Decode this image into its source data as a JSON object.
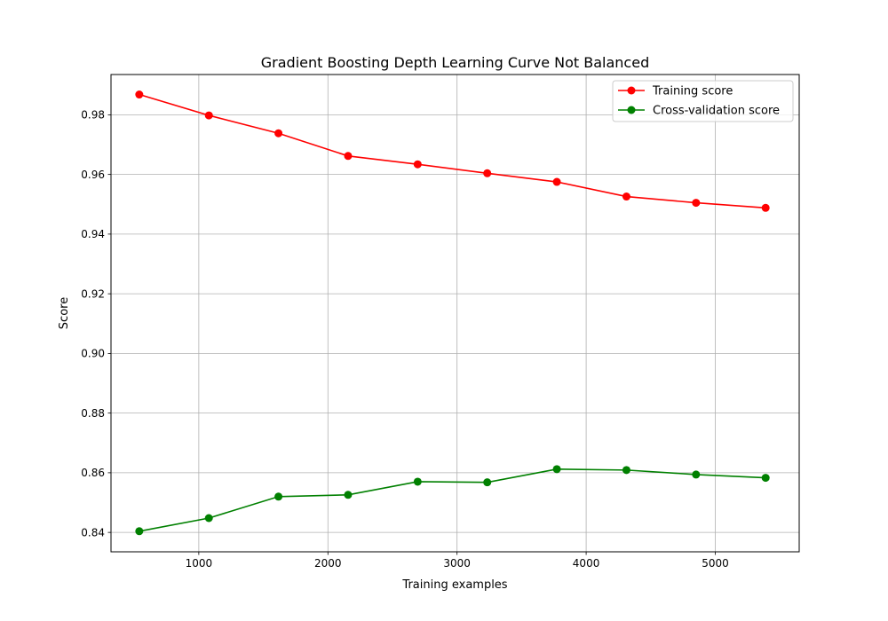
{
  "chart_data": {
    "type": "line",
    "title": "Gradient Boosting Depth Learning Curve Not Balanced",
    "xlabel": "Training examples",
    "ylabel": "Score",
    "xlim": [
      320,
      5650
    ],
    "ylim": [
      0.8335,
      0.9935
    ],
    "xticks": [
      1000,
      2000,
      3000,
      4000,
      5000
    ],
    "yticks": [
      0.84,
      0.86,
      0.88,
      0.9,
      0.92,
      0.94,
      0.96,
      0.98
    ],
    "xtick_labels": [
      "1000",
      "2000",
      "3000",
      "4000",
      "5000"
    ],
    "ytick_labels": [
      "0.84",
      "0.86",
      "0.88",
      "0.90",
      "0.92",
      "0.94",
      "0.96",
      "0.98"
    ],
    "grid": true,
    "legend_position": "upper-right",
    "x": [
      539,
      1078,
      1617,
      2156,
      2695,
      3234,
      3773,
      4312,
      4851,
      5390
    ],
    "series": [
      {
        "name": "Training score",
        "color": "#ff0000",
        "values": [
          0.9868,
          0.9798,
          0.9738,
          0.9662,
          0.9634,
          0.9604,
          0.9575,
          0.9526,
          0.9505,
          0.9488
        ]
      },
      {
        "name": "Cross-validation score",
        "color": "#008000",
        "values": [
          0.8404,
          0.8448,
          0.852,
          0.8526,
          0.857,
          0.8568,
          0.8612,
          0.8609,
          0.8594,
          0.8583
        ]
      }
    ]
  }
}
